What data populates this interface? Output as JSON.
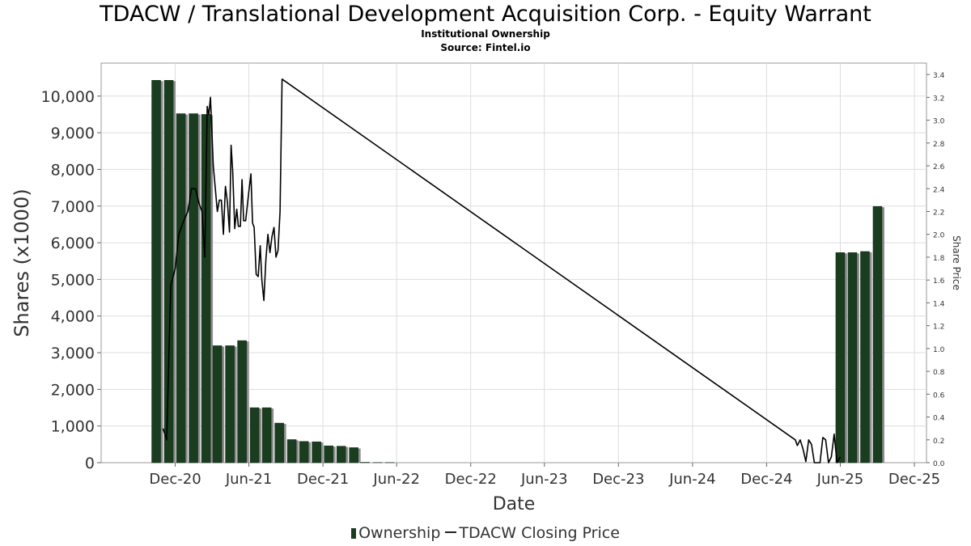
{
  "chart_data": {
    "type": "bar+line",
    "title": "TDACW / Translational Development Acquisition Corp. - Equity Warrant",
    "subtitle": "Institutional Ownership",
    "source": "Source: Fintel.io",
    "xlabel": "Date",
    "ylabel_left": "Shares (x1000)",
    "ylabel_right": "Share Price",
    "x_tick_labels": [
      "Dec-20",
      "Jun-21",
      "Dec-21",
      "Jun-22",
      "Dec-22",
      "Jun-23",
      "Dec-23",
      "Jun-24",
      "Dec-24",
      "Jun-25",
      "Dec-25"
    ],
    "y_left_ticks": [
      "0",
      "1,000",
      "2,000",
      "3,000",
      "4,000",
      "5,000",
      "6,000",
      "7,000",
      "8,000",
      "9,000",
      "10,000"
    ],
    "y_right_ticks": [
      "0.0",
      "0.2",
      "0.4",
      "0.6",
      "0.8",
      "1.0",
      "1.2",
      "1.4",
      "1.6",
      "1.8",
      "2.0",
      "2.2",
      "2.4",
      "2.6",
      "2.8",
      "3.0",
      "3.2",
      "3.4"
    ],
    "ylim_left": [
      0,
      10900
    ],
    "ylim_right": [
      0,
      3.5
    ],
    "grid": true,
    "legend_position": "bottom",
    "colors": {
      "bar": "#1a3d1f",
      "bar_shadow": "#8c8c8c",
      "line": "#000000",
      "grid": "#dddddd"
    },
    "series": [
      {
        "name": "Ownership",
        "kind": "bar",
        "points": [
          [
            "2020-10-15",
            10430
          ],
          [
            "2020-11-15",
            10430
          ],
          [
            "2020-12-15",
            9520
          ],
          [
            "2021-01-15",
            9520
          ],
          [
            "2021-02-15",
            9500
          ],
          [
            "2021-03-15",
            3190
          ],
          [
            "2021-04-15",
            3190
          ],
          [
            "2021-05-15",
            3330
          ],
          [
            "2021-06-15",
            1500
          ],
          [
            "2021-07-15",
            1500
          ],
          [
            "2021-08-15",
            1080
          ],
          [
            "2021-09-15",
            630
          ],
          [
            "2021-10-15",
            580
          ],
          [
            "2021-11-15",
            570
          ],
          [
            "2021-12-15",
            460
          ],
          [
            "2022-01-15",
            450
          ],
          [
            "2022-02-15",
            410
          ],
          [
            "2022-03-15",
            10
          ],
          [
            "2022-04-15",
            5
          ],
          [
            "2022-05-15",
            5
          ],
          [
            "2025-06-01",
            5730
          ],
          [
            "2025-07-01",
            5730
          ],
          [
            "2025-08-01",
            5760
          ],
          [
            "2025-09-01",
            6990
          ]
        ]
      },
      {
        "name": "TDACW Closing Price",
        "kind": "line",
        "points": [
          [
            "2020-11-01",
            0.3
          ],
          [
            "2020-11-10",
            0.2
          ],
          [
            "2020-11-20",
            1.55
          ],
          [
            "2020-12-01",
            1.7
          ],
          [
            "2020-12-10",
            2.0
          ],
          [
            "2020-12-20",
            2.1
          ],
          [
            "2021-01-01",
            2.2
          ],
          [
            "2021-01-10",
            2.4
          ],
          [
            "2021-01-20",
            2.4
          ],
          [
            "2021-01-28",
            2.28
          ],
          [
            "2021-02-05",
            2.2
          ],
          [
            "2021-02-12",
            1.8
          ],
          [
            "2021-02-18",
            3.12
          ],
          [
            "2021-02-22",
            3.05
          ],
          [
            "2021-02-26",
            3.2
          ],
          [
            "2021-03-05",
            2.6
          ],
          [
            "2021-03-10",
            2.4
          ],
          [
            "2021-03-15",
            2.2
          ],
          [
            "2021-03-20",
            2.3
          ],
          [
            "2021-03-25",
            2.3
          ],
          [
            "2021-03-30",
            2.0
          ],
          [
            "2021-04-04",
            2.42
          ],
          [
            "2021-04-09",
            2.28
          ],
          [
            "2021-04-14",
            2.02
          ],
          [
            "2021-04-18",
            2.78
          ],
          [
            "2021-04-22",
            2.55
          ],
          [
            "2021-04-27",
            2.05
          ],
          [
            "2021-05-02",
            2.22
          ],
          [
            "2021-05-06",
            2.07
          ],
          [
            "2021-05-11",
            2.07
          ],
          [
            "2021-05-15",
            2.48
          ],
          [
            "2021-05-19",
            2.12
          ],
          [
            "2021-05-24",
            2.12
          ],
          [
            "2021-06-01",
            2.38
          ],
          [
            "2021-06-06",
            2.53
          ],
          [
            "2021-06-10",
            2.1
          ],
          [
            "2021-06-14",
            2.06
          ],
          [
            "2021-06-19",
            1.65
          ],
          [
            "2021-06-24",
            1.63
          ],
          [
            "2021-06-29",
            1.9
          ],
          [
            "2021-07-03",
            1.6
          ],
          [
            "2021-07-08",
            1.42
          ],
          [
            "2021-07-13",
            1.78
          ],
          [
            "2021-07-18",
            2.0
          ],
          [
            "2021-07-23",
            1.84
          ],
          [
            "2021-07-28",
            1.98
          ],
          [
            "2021-08-02",
            2.06
          ],
          [
            "2021-08-07",
            1.8
          ],
          [
            "2021-08-12",
            1.86
          ],
          [
            "2021-08-17",
            2.2
          ],
          [
            "2021-08-22",
            3.36
          ],
          [
            "2025-02-10",
            0.2
          ],
          [
            "2025-02-15",
            0.15
          ],
          [
            "2025-02-22",
            0.2
          ],
          [
            "2025-03-01",
            0.12
          ],
          [
            "2025-03-08",
            0.01
          ],
          [
            "2025-03-15",
            0.2
          ],
          [
            "2025-03-22",
            0.16
          ],
          [
            "2025-03-29",
            0.0
          ],
          [
            "2025-04-05",
            0.0
          ],
          [
            "2025-04-12",
            0.0
          ],
          [
            "2025-04-19",
            0.22
          ],
          [
            "2025-04-26",
            0.2
          ],
          [
            "2025-05-03",
            0.0
          ],
          [
            "2025-05-10",
            0.05
          ],
          [
            "2025-05-17",
            0.25
          ],
          [
            "2025-05-24",
            0.0
          ],
          [
            "2025-06-01",
            0.05
          ]
        ]
      }
    ]
  }
}
